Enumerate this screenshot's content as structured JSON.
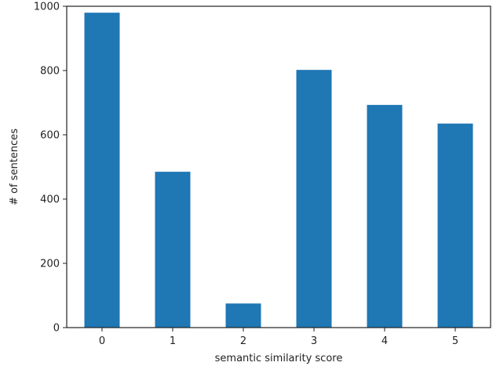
{
  "chart_data": {
    "type": "bar",
    "title": "",
    "xlabel": "semantic similarity score",
    "ylabel": "# of sentences",
    "categories": [
      "0",
      "1",
      "2",
      "3",
      "4",
      "5"
    ],
    "values": [
      980,
      485,
      75,
      802,
      693,
      635
    ],
    "ylim": [
      0,
      1000
    ],
    "yticks": [
      0,
      200,
      400,
      600,
      800,
      1000
    ],
    "grid": false,
    "legend": "none",
    "bar_color": "#1f77b4"
  }
}
